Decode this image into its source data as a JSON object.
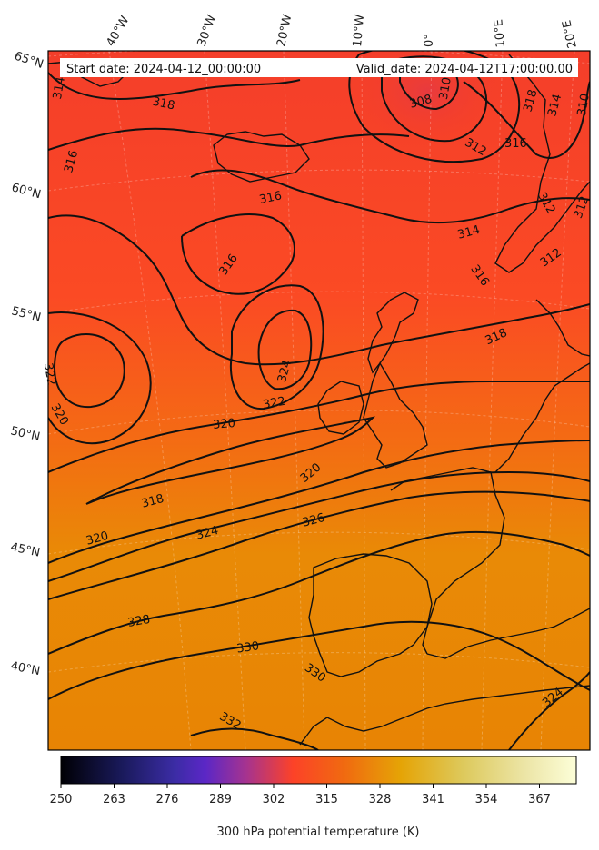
{
  "header": {
    "start_date": "Start date: 2024-04-12_00:00:00",
    "valid_date": "Valid_date: 2024-04-12T17:00:00.00"
  },
  "lon_labels": [
    "40°W",
    "30°W",
    "20°W",
    "10°W",
    "0°",
    "10°E",
    "20°E"
  ],
  "lat_labels": [
    "65°N",
    "60°N",
    "55°N",
    "50°N",
    "45°N",
    "40°N"
  ],
  "contour_labels": [
    "314",
    "318",
    "308",
    "310",
    "318",
    "314",
    "310",
    "316",
    "312",
    "316",
    "316",
    "312",
    "312",
    "314",
    "316",
    "316",
    "312",
    "318",
    "322",
    "324",
    "320",
    "322",
    "320",
    "320",
    "318",
    "320",
    "324",
    "326",
    "328",
    "330",
    "330",
    "332",
    "324",
    "322"
  ],
  "colorbar": {
    "ticks": [
      "250",
      "263",
      "276",
      "289",
      "302",
      "315",
      "328",
      "341",
      "354",
      "367"
    ],
    "label": "300 hPa potential temperature (K)",
    "min": 250,
    "max": 376
  },
  "colors": {
    "cold": "#000004",
    "mid": "#4b25c8",
    "warm": "#fc4228",
    "hot": "#e69100",
    "max": "#fcfed8"
  }
}
